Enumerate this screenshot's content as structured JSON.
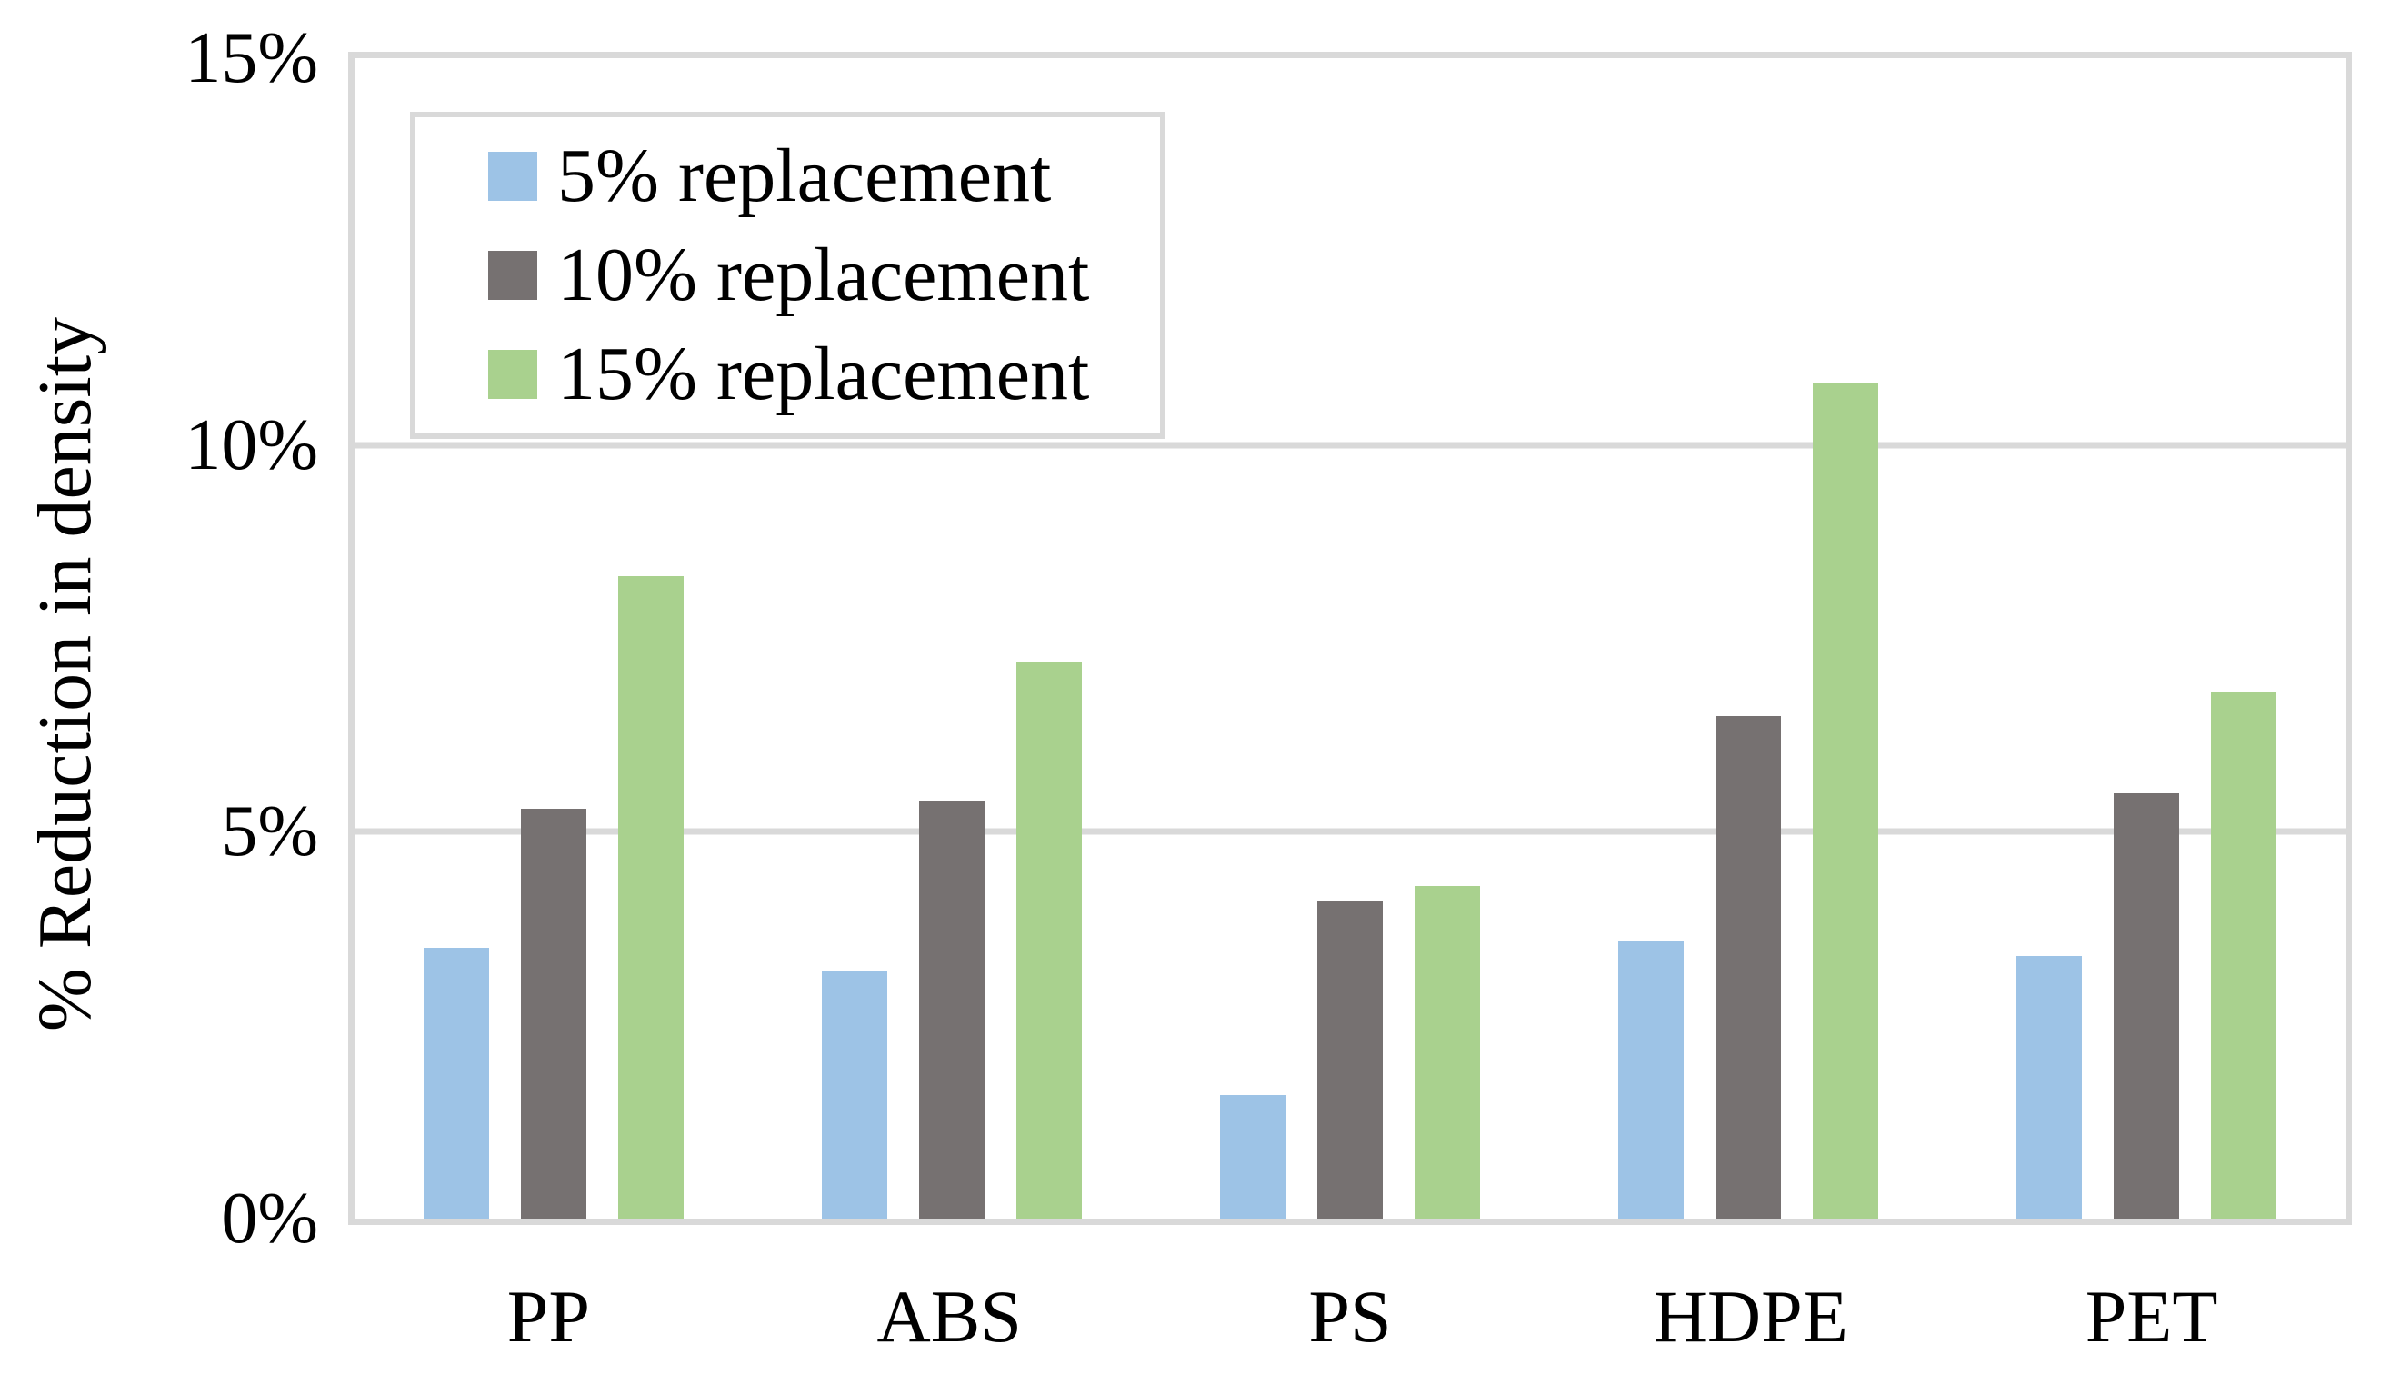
{
  "figure": {
    "background": "#FFFFFF",
    "text_color": "#000000"
  },
  "chart_data": {
    "type": "bar",
    "title": "",
    "categories": [
      "PP",
      "ABS",
      "PS",
      "HDPE",
      "PET"
    ],
    "series": [
      {
        "name": "5% replacement",
        "color": "#9DC3E6",
        "values": [
          3.5,
          3.2,
          1.6,
          3.6,
          3.4
        ]
      },
      {
        "name": "10% replacement",
        "color": "#767171",
        "values": [
          5.3,
          5.4,
          4.1,
          6.5,
          5.5
        ]
      },
      {
        "name": "15% replacement",
        "color": "#A9D18E",
        "values": [
          8.3,
          7.2,
          4.3,
          10.8,
          6.8
        ]
      }
    ],
    "xlabel": "",
    "ylabel": "% Reduction in density",
    "ylim": [
      0,
      15
    ],
    "y_ticks": [
      {
        "value": 0,
        "label": "0%"
      },
      {
        "value": 5,
        "label": "5%"
      },
      {
        "value": 10,
        "label": "10%"
      },
      {
        "value": 15,
        "label": "15%"
      }
    ],
    "gridlines_at": [
      5,
      10
    ],
    "grid": true,
    "legend_position": "top-left",
    "colors": {
      "gridline": "#D9D9D9",
      "plot_border": "#D9D9D9",
      "legend_border": "#D9D9D9",
      "axis_text": "#000000"
    }
  }
}
